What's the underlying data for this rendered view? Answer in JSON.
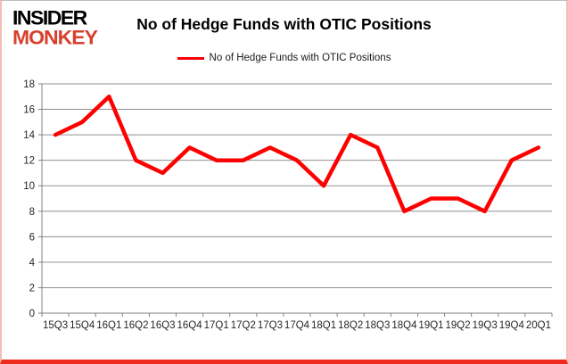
{
  "logo": {
    "line1": "INSIDER",
    "line2": "MONKEY",
    "line1_color": "#000000",
    "line2_color": "#d8402e"
  },
  "title": "No of Hedge Funds with OTIC Positions",
  "legend": {
    "label": "No of Hedge Funds with OTIC Positions",
    "swatch_color": "#fe0000"
  },
  "chart_data": {
    "type": "line",
    "title": "No of Hedge Funds with OTIC Positions",
    "categories": [
      "15Q3",
      "15Q4",
      "16Q1",
      "16Q2",
      "16Q3",
      "16Q4",
      "17Q1",
      "17Q2",
      "17Q3",
      "17Q4",
      "18Q1",
      "18Q2",
      "18Q3",
      "18Q4",
      "19Q1",
      "19Q2",
      "19Q3",
      "19Q4",
      "20Q1"
    ],
    "series": [
      {
        "name": "No of Hedge Funds with OTIC Positions",
        "color": "#fe0000",
        "values": [
          14,
          15,
          17,
          12,
          11,
          13,
          12,
          12,
          13,
          12,
          10,
          14,
          13,
          8,
          9,
          9,
          8,
          12,
          13
        ]
      }
    ],
    "xlabel": "",
    "ylabel": "",
    "ylim": [
      0,
      18
    ],
    "ytick_step": 2,
    "grid": true,
    "legend_position": "top",
    "gridline_color": "#909090",
    "axis_color": "#808080",
    "axis_text_color": "#262626"
  },
  "frame": {
    "border_top_color": "#bdbdbd",
    "border_side_color": "#f5beb4",
    "border_bottom_color": "#ee2a1e"
  }
}
